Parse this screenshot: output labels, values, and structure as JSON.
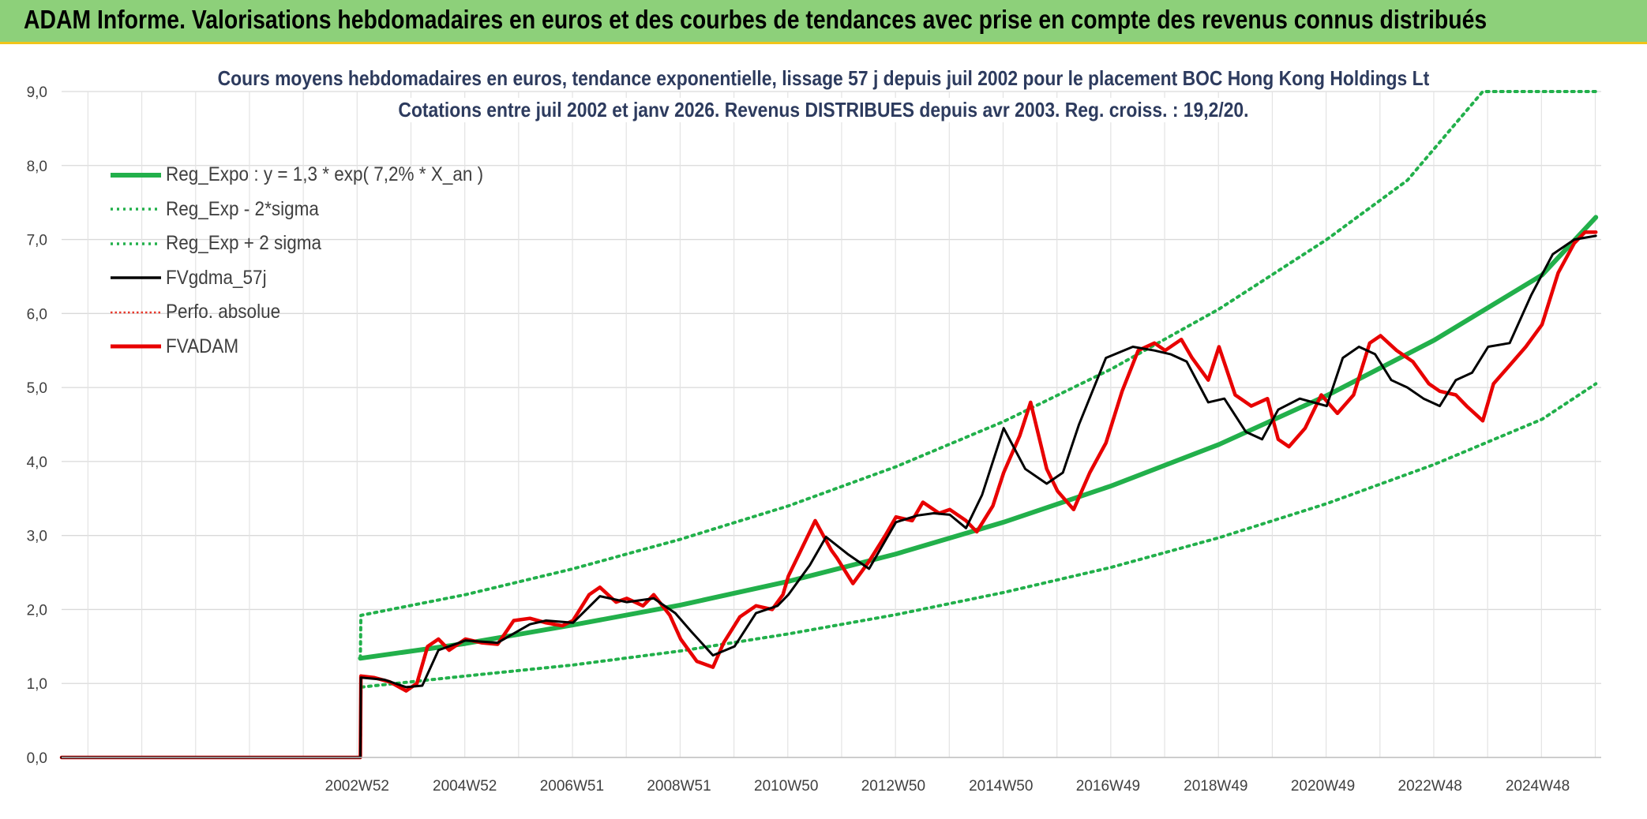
{
  "banner": {
    "title": "ADAM Informe. Valorisations hebdomadaires en euros et des courbes de tendances avec prise en compte des revenus connus distribués",
    "colors": {
      "background": "#8dd07a",
      "accent_edge": "#f0c419"
    }
  },
  "chart_data": {
    "type": "line",
    "title": "Cours moyens hebdomadaires en euros, tendance exponentielle, lissage 57 j depuis juil 2002 pour le placement BOC Hong Kong Holdings Lt",
    "subtitle": "Cotations entre juil 2002 et janv 2026. Revenus DISTRIBUES depuis avr 2003. Reg. croiss. : 19,2/20.",
    "xlabel": "",
    "ylabel": "",
    "xlim": [
      1997.5,
      2026.1
    ],
    "ylim": [
      0,
      9
    ],
    "y_ticks": [
      "0,0",
      "1,0",
      "2,0",
      "3,0",
      "4,0",
      "5,0",
      "6,0",
      "7,0",
      "8,0",
      "9,0"
    ],
    "x_ticks": [
      {
        "label": "2002W52",
        "x": 2002.99
      },
      {
        "label": "2004W52",
        "x": 2004.99
      },
      {
        "label": "2006W51",
        "x": 2006.98
      },
      {
        "label": "2008W51",
        "x": 2008.97
      },
      {
        "label": "2010W50",
        "x": 2010.96
      },
      {
        "label": "2012W50",
        "x": 2012.95
      },
      {
        "label": "2014W50",
        "x": 2014.95
      },
      {
        "label": "2016W49",
        "x": 2016.94
      },
      {
        "label": "2018W49",
        "x": 2018.94
      },
      {
        "label": "2020W49",
        "x": 2020.93
      },
      {
        "label": "2022W48",
        "x": 2022.92
      },
      {
        "label": "2024W48",
        "x": 2024.92
      }
    ],
    "grid": true,
    "legend_position": "top-left",
    "series": [
      {
        "name": "Reg_Expo : y = 1,3 * exp( 7,2% *  X_an )",
        "style": "solid-thick",
        "color": "#22b04b",
        "x": [
          2003.05,
          2005,
          2007,
          2009,
          2011,
          2013,
          2015,
          2017,
          2019,
          2021,
          2023,
          2025,
          2026.0
        ],
        "y": [
          1.34,
          1.54,
          1.79,
          2.06,
          2.38,
          2.75,
          3.18,
          3.67,
          4.23,
          4.89,
          5.64,
          6.52,
          7.3
        ]
      },
      {
        "name": "Reg_Exp - 2*sigma",
        "style": "dotted",
        "color": "#22b04b",
        "x": [
          2003.05,
          2003.06,
          2005,
          2007,
          2009,
          2011,
          2013,
          2015,
          2017,
          2019,
          2021,
          2023,
          2025,
          2026.0
        ],
        "y": [
          0.0,
          0.95,
          1.1,
          1.25,
          1.44,
          1.67,
          1.93,
          2.23,
          2.57,
          2.97,
          3.43,
          3.96,
          4.57,
          5.05
        ]
      },
      {
        "name": "Reg_Exp + 2 sigma",
        "style": "dotted",
        "color": "#22b04b",
        "x": [
          2003.05,
          2003.06,
          2005,
          2007,
          2009,
          2011,
          2013,
          2015,
          2017,
          2019,
          2021,
          2022.5,
          2023.9,
          2026.0
        ],
        "y": [
          1.34,
          1.92,
          2.2,
          2.55,
          2.95,
          3.4,
          3.93,
          4.54,
          5.25,
          6.06,
          7.0,
          7.8,
          9.0,
          9.0
        ]
      },
      {
        "name": "FVgdma_57j",
        "style": "solid",
        "color": "#000000",
        "x": [
          1997.5,
          2003.05,
          2003.06,
          2003.5,
          2003.9,
          2004.2,
          2004.5,
          2005.0,
          2005.6,
          2006.2,
          2006.5,
          2007.0,
          2007.5,
          2008.0,
          2008.5,
          2008.9,
          2009.2,
          2009.6,
          2010.0,
          2010.4,
          2010.8,
          2011.0,
          2011.4,
          2011.7,
          2012.1,
          2012.5,
          2013.0,
          2013.4,
          2013.7,
          2014.0,
          2014.3,
          2014.6,
          2015.0,
          2015.4,
          2015.8,
          2016.1,
          2016.4,
          2016.9,
          2017.4,
          2017.8,
          2018.1,
          2018.4,
          2018.8,
          2019.1,
          2019.5,
          2019.8,
          2020.1,
          2020.5,
          2021.0,
          2021.3,
          2021.6,
          2021.9,
          2022.2,
          2022.5,
          2022.8,
          2023.1,
          2023.4,
          2023.7,
          2024.0,
          2024.4,
          2024.8,
          2025.2,
          2025.6,
          2026.0
        ],
        "y": [
          0.0,
          0.0,
          1.08,
          1.05,
          0.95,
          0.97,
          1.45,
          1.58,
          1.55,
          1.8,
          1.85,
          1.82,
          2.18,
          2.1,
          2.15,
          1.95,
          1.7,
          1.38,
          1.5,
          1.95,
          2.05,
          2.2,
          2.6,
          2.98,
          2.75,
          2.55,
          3.18,
          3.27,
          3.3,
          3.28,
          3.1,
          3.55,
          4.45,
          3.9,
          3.7,
          3.85,
          4.5,
          5.4,
          5.55,
          5.5,
          5.45,
          5.35,
          4.8,
          4.85,
          4.4,
          4.3,
          4.7,
          4.85,
          4.75,
          5.4,
          5.55,
          5.45,
          5.1,
          5.0,
          4.85,
          4.75,
          5.1,
          5.2,
          5.55,
          5.6,
          6.25,
          6.8,
          7.0,
          7.05
        ]
      },
      {
        "name": "Perfo. absolue",
        "style": "dotted",
        "color": "#e8392c",
        "x": [],
        "y": []
      },
      {
        "name": "FVADAM",
        "style": "solid-thick",
        "color": "#e80000",
        "x": [
          1997.5,
          2003.05,
          2003.06,
          2003.3,
          2003.6,
          2003.9,
          2004.1,
          2004.3,
          2004.5,
          2004.7,
          2005.0,
          2005.3,
          2005.6,
          2005.9,
          2006.2,
          2006.5,
          2006.8,
          2007.0,
          2007.3,
          2007.5,
          2007.8,
          2008.0,
          2008.3,
          2008.5,
          2008.8,
          2009.0,
          2009.3,
          2009.6,
          2009.8,
          2010.1,
          2010.4,
          2010.7,
          2010.9,
          2011.0,
          2011.2,
          2011.5,
          2011.8,
          2011.9,
          2012.2,
          2012.5,
          2012.8,
          2013.0,
          2013.3,
          2013.5,
          2013.8,
          2014.0,
          2014.3,
          2014.5,
          2014.8,
          2015.0,
          2015.3,
          2015.5,
          2015.8,
          2016.0,
          2016.3,
          2016.6,
          2016.9,
          2017.2,
          2017.5,
          2017.8,
          2018.0,
          2018.3,
          2018.5,
          2018.8,
          2019.0,
          2019.3,
          2019.6,
          2019.9,
          2020.1,
          2020.3,
          2020.6,
          2020.9,
          2021.2,
          2021.5,
          2021.8,
          2022.0,
          2022.3,
          2022.6,
          2022.9,
          2023.1,
          2023.4,
          2023.6,
          2023.9,
          2024.1,
          2024.4,
          2024.7,
          2025.0,
          2025.3,
          2025.6,
          2025.8,
          2026.0
        ],
        "y": [
          0.0,
          0.0,
          1.1,
          1.08,
          1.02,
          0.9,
          1.0,
          1.5,
          1.6,
          1.45,
          1.6,
          1.55,
          1.53,
          1.85,
          1.88,
          1.82,
          1.78,
          1.85,
          2.2,
          2.3,
          2.1,
          2.15,
          2.05,
          2.2,
          1.92,
          1.6,
          1.3,
          1.22,
          1.55,
          1.9,
          2.05,
          2.0,
          2.2,
          2.45,
          2.75,
          3.2,
          2.8,
          2.7,
          2.35,
          2.65,
          3.0,
          3.25,
          3.2,
          3.45,
          3.3,
          3.35,
          3.2,
          3.05,
          3.4,
          3.85,
          4.35,
          4.8,
          3.9,
          3.6,
          3.35,
          3.85,
          4.25,
          4.95,
          5.5,
          5.6,
          5.5,
          5.65,
          5.4,
          5.1,
          5.55,
          4.9,
          4.75,
          4.85,
          4.3,
          4.2,
          4.45,
          4.9,
          4.65,
          4.9,
          5.6,
          5.7,
          5.5,
          5.35,
          5.05,
          4.95,
          4.9,
          4.75,
          4.55,
          5.05,
          5.3,
          5.55,
          5.85,
          6.55,
          6.95,
          7.1,
          7.1
        ]
      }
    ]
  }
}
